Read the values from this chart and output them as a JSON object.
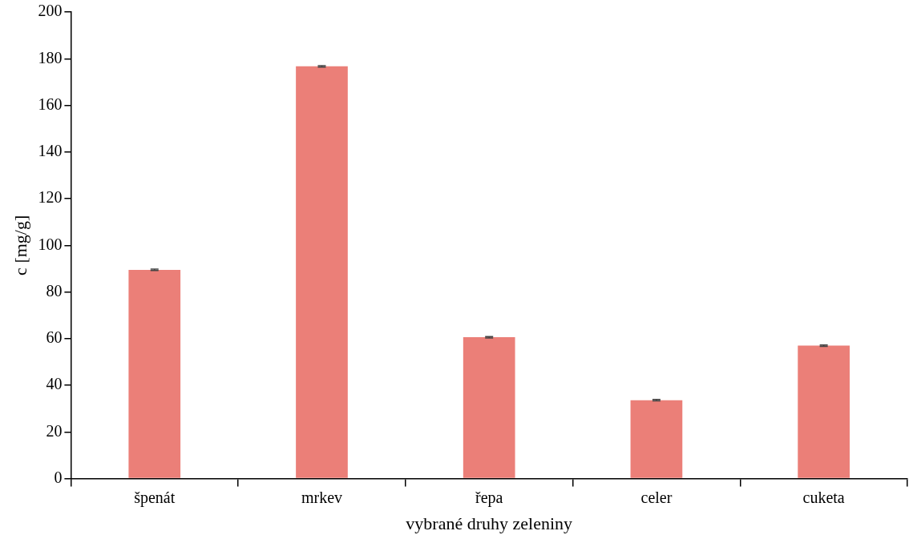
{
  "chart_data": {
    "type": "bar",
    "xlabel": "vybrané druhy zeleniny",
    "ylabel": "c [mg/g]",
    "categories": [
      "špenát",
      "mrkev",
      "řepa",
      "celer",
      "cuketa"
    ],
    "values": [
      89.5,
      176.7,
      60.6,
      33.6,
      57.0
    ],
    "errors": [
      0.3,
      0.3,
      0.3,
      0.3,
      0.3
    ],
    "color": "#eb7f78",
    "ylim": [
      0,
      200
    ],
    "yticks": [
      0,
      20,
      40,
      60,
      80,
      100,
      120,
      140,
      160,
      180,
      200
    ],
    "grid": false,
    "legend": false
  }
}
